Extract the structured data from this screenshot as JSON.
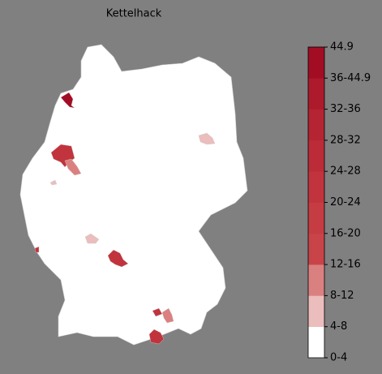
{
  "chart_data": {
    "type": "choropleth",
    "title": "Kettelhack",
    "colorbar": {
      "ticks": [
        {
          "value": 0,
          "label": "0-4"
        },
        {
          "value": 4,
          "label": "4-8"
        },
        {
          "value": 8,
          "label": "8-12"
        },
        {
          "value": 12,
          "label": "12-16"
        },
        {
          "value": 16,
          "label": "16-20"
        },
        {
          "value": 20,
          "label": "20-24"
        },
        {
          "value": 24,
          "label": "24-28"
        },
        {
          "value": 28,
          "label": "28-32"
        },
        {
          "value": 32,
          "label": "32-36"
        },
        {
          "value": 36,
          "label": "36-44.9"
        },
        44.9
      ],
      "colors": [
        "#ffffff",
        "#ebbdbd",
        "#db8080",
        "#c94449",
        "#c53c43",
        "#c1343d",
        "#bc2c38",
        "#b52432",
        "#ad1a2b",
        "#a30d24"
      ]
    },
    "regions": [
      40,
      22,
      10,
      6,
      6,
      6,
      20,
      20,
      20,
      10,
      22
    ]
  }
}
